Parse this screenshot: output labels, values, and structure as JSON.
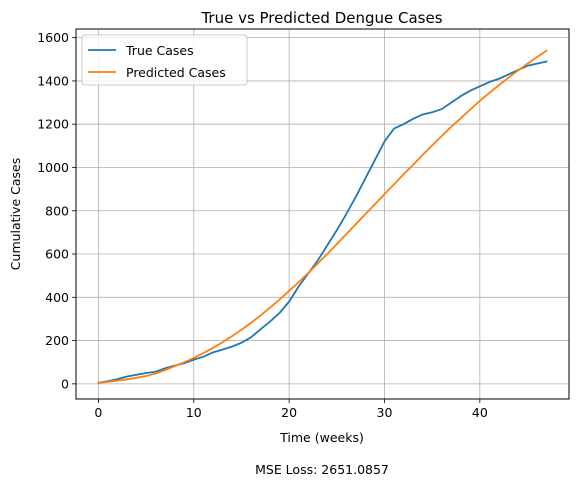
{
  "chart_data": {
    "type": "line",
    "title": "True vs Predicted Dengue Cases",
    "xlabel": "Time (weeks)",
    "ylabel": "Cumulative Cases",
    "xlim": [
      -2.35,
      49.35
    ],
    "ylim": [
      -70,
      1640
    ],
    "xticks": [
      0,
      10,
      20,
      30,
      40
    ],
    "yticks": [
      0,
      200,
      400,
      600,
      800,
      1000,
      1200,
      1400,
      1600
    ],
    "grid": true,
    "legend": "top-left",
    "series": [
      {
        "name": "True Cases",
        "color": "#1f77b4",
        "x": [
          0,
          1,
          2,
          3,
          4,
          5,
          6,
          7,
          8,
          9,
          10,
          11,
          12,
          13,
          14,
          15,
          16,
          17,
          18,
          19,
          20,
          21,
          22,
          23,
          24,
          25,
          26,
          27,
          28,
          29,
          30,
          31,
          32,
          33,
          34,
          35,
          36,
          37,
          38,
          39,
          40,
          41,
          42,
          43,
          44,
          45,
          46,
          47
        ],
        "y": [
          5,
          12,
          22,
          34,
          42,
          50,
          56,
          72,
          84,
          95,
          112,
          125,
          145,
          158,
          172,
          190,
          215,
          252,
          288,
          328,
          380,
          450,
          510,
          570,
          640,
          710,
          785,
          865,
          950,
          1035,
          1120,
          1180,
          1200,
          1225,
          1245,
          1255,
          1270,
          1300,
          1330,
          1355,
          1375,
          1395,
          1410,
          1430,
          1450,
          1470,
          1480,
          1490
        ]
      },
      {
        "name": "Predicted Cases",
        "color": "#ff7f0e",
        "x": [
          0,
          1,
          2,
          3,
          4,
          5,
          6,
          7,
          8,
          9,
          10,
          11,
          12,
          13,
          14,
          15,
          16,
          17,
          18,
          19,
          20,
          21,
          22,
          23,
          24,
          25,
          26,
          27,
          28,
          29,
          30,
          31,
          32,
          33,
          34,
          35,
          36,
          37,
          38,
          39,
          40,
          41,
          42,
          43,
          44,
          45,
          46,
          47
        ],
        "y": [
          5,
          9,
          15,
          21,
          28,
          36,
          48,
          64,
          82,
          100,
          120,
          142,
          166,
          192,
          220,
          250,
          282,
          316,
          352,
          390,
          430,
          470,
          512,
          556,
          600,
          646,
          692,
          738,
          785,
          830,
          877,
          922,
          968,
          1012,
          1058,
          1102,
          1145,
          1188,
          1228,
          1268,
          1308,
          1345,
          1380,
          1415,
          1448,
          1480,
          1510,
          1540
        ]
      }
    ],
    "annotation": "MSE Loss: 2651.0857"
  }
}
